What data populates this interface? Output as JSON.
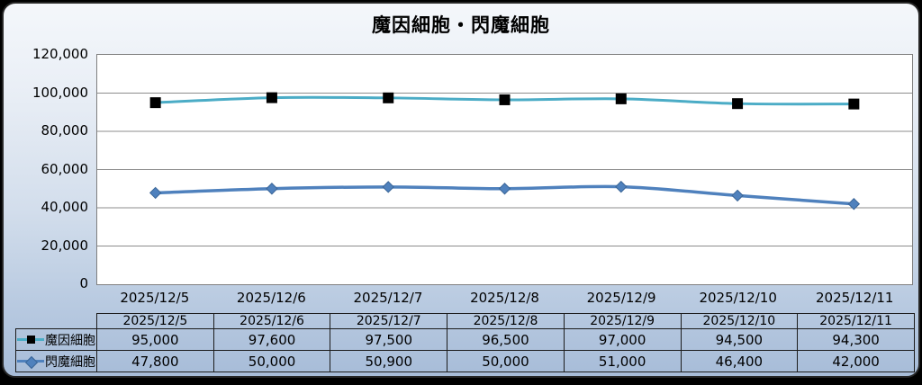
{
  "title": "魔因細胞・閃魔細胞",
  "chart_data": {
    "type": "line",
    "title": "魔因細胞・閃魔細胞",
    "categories": [
      "2025/12/5",
      "2025/12/6",
      "2025/12/7",
      "2025/12/8",
      "2025/12/9",
      "2025/12/10",
      "2025/12/11"
    ],
    "series": [
      {
        "name": "魔因細胞",
        "values": [
          95000,
          97600,
          97500,
          96500,
          97000,
          94500,
          94300
        ],
        "line_color": "#4BACC6",
        "line_width": 3,
        "marker": "square",
        "marker_color": "#000000",
        "marker_stroke": "#000000"
      },
      {
        "name": "閃魔細胞",
        "values": [
          47800,
          50000,
          50900,
          50000,
          51000,
          46400,
          42000
        ],
        "line_color": "#4F81BD",
        "line_width": 3.5,
        "marker": "diamond",
        "marker_color": "#4F81BD",
        "marker_stroke": "#3A6597"
      }
    ],
    "ylim": [
      0,
      120000
    ],
    "ytick_labels": [
      "120,000",
      "100,000",
      "80,000",
      "60,000",
      "40,000",
      "20,000",
      "0"
    ],
    "grid": true,
    "gridline_color": "#8c8c8c",
    "plot_background": "#ffffff",
    "legend_position": "table-left"
  },
  "table": {
    "columns": [
      "2025/12/5",
      "2025/12/6",
      "2025/12/7",
      "2025/12/8",
      "2025/12/9",
      "2025/12/10",
      "2025/12/11"
    ],
    "rows": [
      {
        "label": "魔因細胞",
        "values": [
          "95,000",
          "97,600",
          "97,500",
          "96,500",
          "97,000",
          "94,500",
          "94,300"
        ]
      },
      {
        "label": "閃魔細胞",
        "values": [
          "47,800",
          "50,000",
          "50,900",
          "50,000",
          "51,000",
          "46,400",
          "42,000"
        ]
      }
    ]
  },
  "colors": {
    "card_gradient_top": "#f4f7fb",
    "card_gradient_bottom": "#a7bcd8",
    "card_border": "#262626",
    "table_border": "#1c1c1c",
    "text": "#000000"
  }
}
